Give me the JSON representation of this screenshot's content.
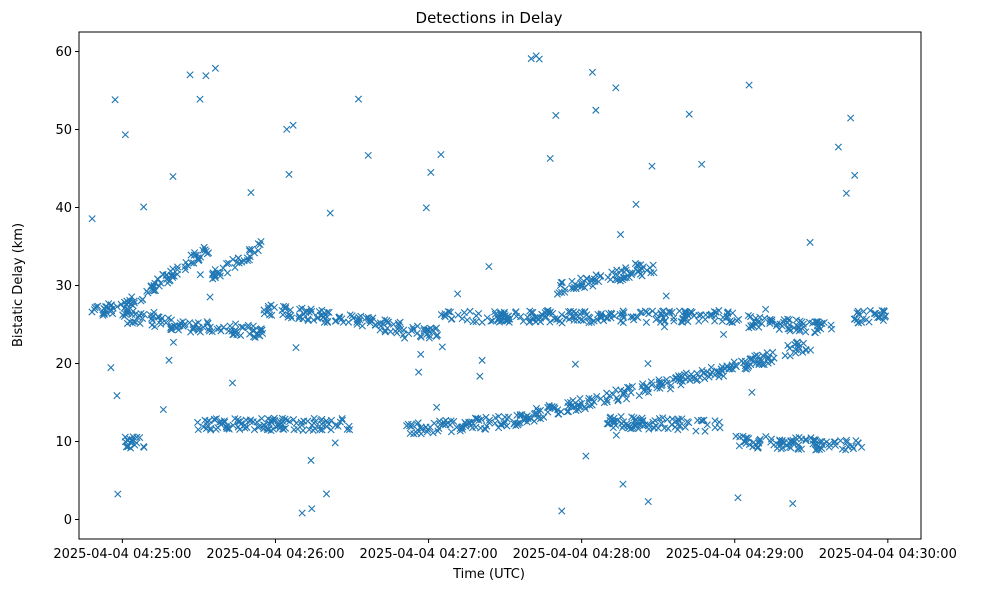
{
  "chart_data": {
    "type": "scatter",
    "title": "Detections in Delay",
    "xlabel": "Time (UTC)",
    "ylabel": "Bistatic Delay (km)",
    "x_units": "seconds since 2025-04-04 04:25:00 UTC",
    "xlim": [
      -17,
      313
    ],
    "ylim": [
      -2.5,
      62.5
    ],
    "xticks": [
      {
        "value": 0,
        "label": "2025-04-04 04:25:00"
      },
      {
        "value": 60,
        "label": "2025-04-04 04:26:00"
      },
      {
        "value": 120,
        "label": "2025-04-04 04:27:00"
      },
      {
        "value": 180,
        "label": "2025-04-04 04:28:00"
      },
      {
        "value": 240,
        "label": "2025-04-04 04:29:00"
      },
      {
        "value": 300,
        "label": "2025-04-04 04:30:00"
      }
    ],
    "yticks": [
      {
        "value": 0,
        "label": "0"
      },
      {
        "value": 10,
        "label": "10"
      },
      {
        "value": 20,
        "label": "20"
      },
      {
        "value": 30,
        "label": "30"
      },
      {
        "value": 40,
        "label": "40"
      },
      {
        "value": 50,
        "label": "50"
      },
      {
        "value": 60,
        "label": "60"
      }
    ],
    "marker": "x",
    "color": "#1f77b4",
    "grid": false,
    "track_segments": [
      {
        "x0": -13,
        "x1": 5,
        "y0": 26.5,
        "y1": 27.5
      },
      {
        "x0": 0,
        "x1": 20,
        "y0": 26,
        "y1": 25
      },
      {
        "x0": 20,
        "x1": 55,
        "y0": 25,
        "y1": 24
      },
      {
        "x0": 55,
        "x1": 80,
        "y0": 27,
        "y1": 26
      },
      {
        "x0": 80,
        "x1": 110,
        "y0": 26,
        "y1": 24.5
      },
      {
        "x0": 110,
        "x1": 125,
        "y0": 24,
        "y1": 24
      },
      {
        "x0": 125,
        "x1": 180,
        "y0": 26,
        "y1": 26
      },
      {
        "x0": 180,
        "x1": 240,
        "y0": 26,
        "y1": 26
      },
      {
        "x0": 240,
        "x1": 278,
        "y0": 25.5,
        "y1": 24.5
      },
      {
        "x0": 285,
        "x1": 300,
        "y0": 26,
        "y1": 26
      },
      {
        "x0": 0,
        "x1": 35,
        "y0": 27,
        "y1": 35
      },
      {
        "x0": 35,
        "x1": 55,
        "y0": 31,
        "y1": 35
      },
      {
        "x0": 28,
        "x1": 90,
        "y0": 12.2,
        "y1": 12.2
      },
      {
        "x0": 110,
        "x1": 150,
        "y0": 11.5,
        "y1": 12.5
      },
      {
        "x0": 150,
        "x1": 240,
        "y0": 12.5,
        "y1": 19.5
      },
      {
        "x0": 240,
        "x1": 270,
        "y0": 19.5,
        "y1": 22.5
      },
      {
        "x0": 170,
        "x1": 210,
        "y0": 29.5,
        "y1": 32.5
      },
      {
        "x0": 190,
        "x1": 235,
        "y0": 12.5,
        "y1": 12
      },
      {
        "x0": 0,
        "x1": 10,
        "y0": 10,
        "y1": 9.6
      },
      {
        "x0": 240,
        "x1": 290,
        "y0": 10,
        "y1": 9.5
      }
    ],
    "point_count": 1400
  }
}
